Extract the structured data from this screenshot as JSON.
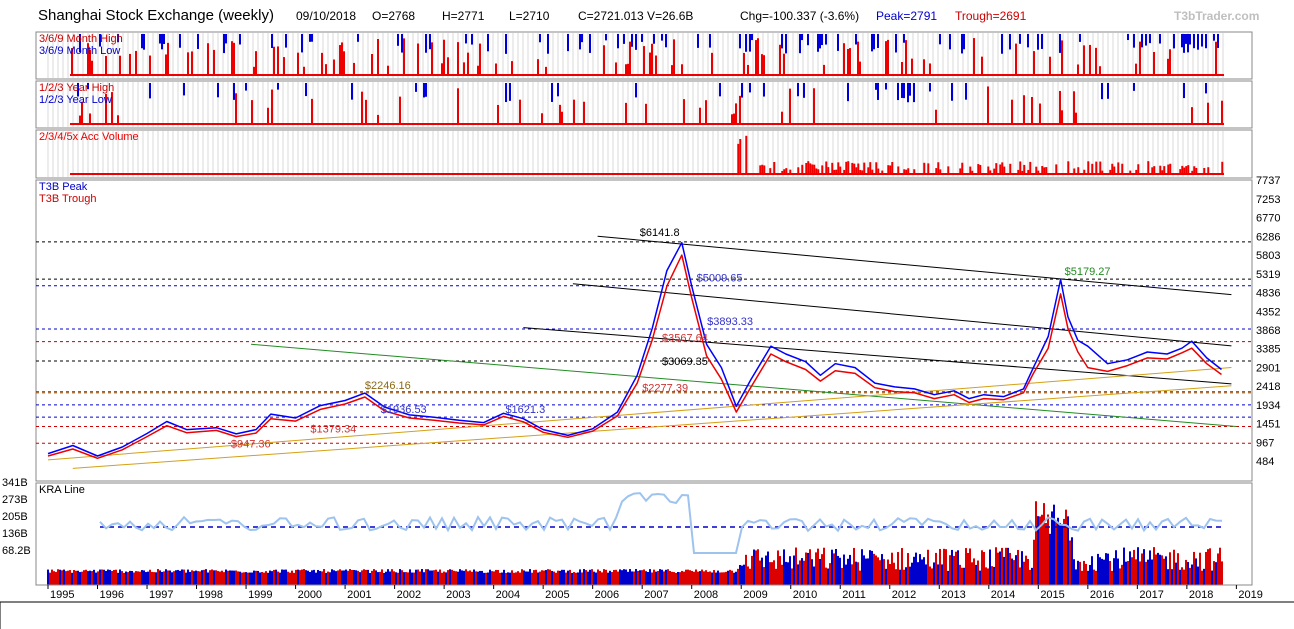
{
  "header": {
    "title": "Shanghai Stock Exchange (weekly)",
    "date": "09/10/2018",
    "open": "O=2768",
    "high": "H=2771",
    "low": "L=2710",
    "close_volume": "C=2721.013 V=26.6B",
    "change": "Chg=-100.337 (-3.6%)",
    "peak": "Peak=2791",
    "trough": "Trough=2691",
    "brand": "T3bTrader.com"
  },
  "colors": {
    "high": "#0000dd",
    "low": "#ee0000",
    "peak_line": "#0000ff",
    "trough_line": "#ee0000",
    "trendline": "#000000",
    "support": "#d4a017",
    "green_line": "#228b22"
  },
  "chart_data": [
    {
      "type": "bar",
      "panel": "month-high-low",
      "legend": [
        "3/6/9 Month High",
        "3/6/9 Month Low"
      ],
      "legend_placement": "top-left"
    },
    {
      "type": "bar",
      "panel": "year-high-low",
      "legend": [
        "1/2/3 Year High",
        "1/2/3 Year Low"
      ],
      "legend_placement": "top-left"
    },
    {
      "type": "bar",
      "panel": "acc-volume",
      "legend": [
        "2/3/4/5x Acc Volume"
      ],
      "legend_placement": "top-left"
    },
    {
      "type": "line",
      "panel": "price",
      "legend": [
        "T3B Peak",
        "T3B Trough"
      ],
      "legend_placement": "top-left",
      "ylim": [
        0,
        7737
      ],
      "y_ticks": [
        "7737",
        "7253",
        "6770",
        "6286",
        "5803",
        "5319",
        "4836",
        "4352",
        "3868",
        "3385",
        "2901",
        "2418",
        "1934",
        "1451",
        "967",
        "484"
      ],
      "x_ticks": [
        "1995",
        "1996",
        "1997",
        "1998",
        "1999",
        "2000",
        "2001",
        "2002",
        "2003",
        "2004",
        "2005",
        "2006",
        "2007",
        "2008",
        "2009",
        "2010",
        "2011",
        "2012",
        "2013",
        "2014",
        "2015",
        "2016",
        "2017",
        "2018",
        "2019"
      ],
      "series": [
        {
          "name": "T3B Peak",
          "x": [
            1995.0,
            1995.5,
            1996.0,
            1996.5,
            1997.0,
            1997.4,
            1997.8,
            1998.4,
            1998.8,
            1999.2,
            1999.5,
            2000.0,
            2000.5,
            2001.0,
            2001.4,
            2001.8,
            2002.3,
            2002.8,
            2003.3,
            2003.8,
            2004.2,
            2004.6,
            2005.0,
            2005.5,
            2006.0,
            2006.5,
            2006.9,
            2007.2,
            2007.5,
            2007.8,
            2008.0,
            2008.3,
            2008.6,
            2008.9,
            2009.2,
            2009.6,
            2009.9,
            2010.3,
            2010.6,
            2010.9,
            2011.3,
            2011.7,
            2012.1,
            2012.5,
            2012.9,
            2013.3,
            2013.6,
            2013.9,
            2014.3,
            2014.7,
            2014.9,
            2015.2,
            2015.45,
            2015.6,
            2015.8,
            2016.0,
            2016.4,
            2016.8,
            2017.2,
            2017.6,
            2017.9,
            2018.1,
            2018.4,
            2018.7
          ],
          "values": [
            680,
            890,
            620,
            850,
            1200,
            1510,
            1300,
            1350,
            1190,
            1300,
            1700,
            1600,
            1920,
            2050,
            2240,
            1880,
            1680,
            1620,
            1540,
            1480,
            1720,
            1580,
            1300,
            1150,
            1320,
            1750,
            2700,
            3900,
            5400,
            6120,
            5000,
            3500,
            2900,
            1900,
            2600,
            3450,
            3250,
            3050,
            2700,
            3000,
            2900,
            2500,
            2400,
            2350,
            2200,
            2300,
            2100,
            2200,
            2150,
            2350,
            2900,
            3700,
            5170,
            4200,
            3600,
            3450,
            3000,
            3100,
            3300,
            3250,
            3400,
            3580,
            3150,
            2850
          ]
        },
        {
          "name": "T3B Trough",
          "x": [
            1995.0,
            1995.5,
            1996.0,
            1996.5,
            1997.0,
            1997.4,
            1997.8,
            1998.4,
            1998.8,
            1999.2,
            1999.5,
            2000.0,
            2000.5,
            2001.0,
            2001.4,
            2001.8,
            2002.3,
            2002.8,
            2003.3,
            2003.8,
            2004.2,
            2004.6,
            2005.0,
            2005.5,
            2006.0,
            2006.5,
            2006.9,
            2007.2,
            2007.5,
            2007.8,
            2008.0,
            2008.3,
            2008.6,
            2008.9,
            2009.2,
            2009.6,
            2009.9,
            2010.3,
            2010.6,
            2010.9,
            2011.3,
            2011.7,
            2012.1,
            2012.5,
            2012.9,
            2013.3,
            2013.6,
            2013.9,
            2014.3,
            2014.7,
            2014.9,
            2015.2,
            2015.45,
            2015.6,
            2015.8,
            2016.0,
            2016.4,
            2016.8,
            2017.2,
            2017.6,
            2017.9,
            2018.1,
            2018.4,
            2018.7
          ],
          "values": [
            620,
            800,
            560,
            780,
            1120,
            1400,
            1220,
            1280,
            1120,
            1210,
            1580,
            1520,
            1820,
            1960,
            2140,
            1780,
            1600,
            1540,
            1470,
            1420,
            1640,
            1500,
            1230,
            1100,
            1260,
            1650,
            2500,
            3600,
            5000,
            5800,
            4700,
            3200,
            2600,
            1750,
            2400,
            3250,
            3050,
            2850,
            2550,
            2820,
            2750,
            2380,
            2280,
            2250,
            2100,
            2200,
            2000,
            2100,
            2070,
            2250,
            2750,
            3400,
            4800,
            3900,
            3300,
            2900,
            2800,
            2950,
            3150,
            3120,
            3280,
            3400,
            3000,
            2720
          ]
        }
      ],
      "annotations": [
        {
          "text": "$6141.8",
          "x": 2007.8,
          "y": 6142
        },
        {
          "text": "$5009.65",
          "x": 2008.2,
          "y": 5010
        },
        {
          "text": "$5179.27",
          "x": 2015.45,
          "y": 5179
        },
        {
          "text": "$3893.33",
          "x": 2009.2,
          "y": 3893
        },
        {
          "text": "$3567.64",
          "x": 2007.4,
          "y": 3568
        },
        {
          "text": "$3069.35",
          "x": 2007.4,
          "y": 3069
        },
        {
          "text": "$2277.39",
          "x": 2007.0,
          "y": 2277
        },
        {
          "text": "$2246.16",
          "x": 2001.4,
          "y": 2246
        },
        {
          "text": "$1936.53",
          "x": 2001.6,
          "y": 1937
        },
        {
          "text": "$1621.3",
          "x": 2004.4,
          "y": 1621
        },
        {
          "text": "$1379.34",
          "x": 2000.3,
          "y": 1379
        },
        {
          "text": "$947.36",
          "x": 1999.3,
          "y": 947
        }
      ],
      "horizontal_lines": [
        6142,
        5179,
        5010,
        3893,
        3568,
        3069,
        2277,
        2246,
        1937,
        1621,
        1379,
        947
      ],
      "trendlines": [
        {
          "color": "black",
          "from": [
            2006.1,
            6286
          ],
          "to": [
            2018.9,
            4780
          ]
        },
        {
          "color": "black",
          "from": [
            2005.6,
            5060
          ],
          "to": [
            2018.9,
            3460
          ]
        },
        {
          "color": "black",
          "from": [
            2004.6,
            3930
          ],
          "to": [
            2018.9,
            2480
          ]
        },
        {
          "color": "green",
          "from": [
            1999.1,
            3500
          ],
          "to": [
            2019.0,
            1380
          ]
        },
        {
          "color": "gold",
          "from": [
            1995.0,
            520
          ],
          "to": [
            2018.9,
            2900
          ]
        },
        {
          "color": "gold",
          "from": [
            1995.5,
            300
          ],
          "to": [
            2018.9,
            2430
          ]
        }
      ]
    },
    {
      "type": "bar",
      "panel": "kra",
      "legend": [
        "KRA Line"
      ],
      "legend_placement": "top-left",
      "y_ticks": [
        "341B",
        "273B",
        "205B",
        "136B",
        "68.2B"
      ]
    }
  ]
}
